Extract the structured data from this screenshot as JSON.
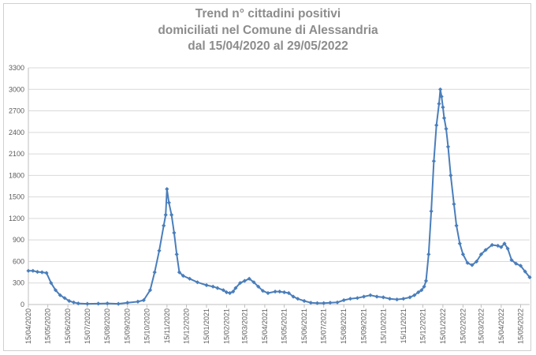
{
  "chart_data": {
    "type": "line",
    "title_lines": [
      "Trend n° cittadini positivi",
      "domiciliati nel Comune di Alessandria",
      "dal 15/04/2020 al 29/05/2022"
    ],
    "xlabel": "",
    "ylabel": "",
    "ylim": [
      0,
      3300
    ],
    "yticks": [
      0,
      300,
      600,
      900,
      1200,
      1500,
      1800,
      2100,
      2400,
      2700,
      3000,
      3300
    ],
    "x_tick_labels": [
      "15/04/2020",
      "15/05/2020",
      "15/06/2020",
      "15/07/2020",
      "15/08/2020",
      "15/09/2020",
      "15/10/2020",
      "15/11/2020",
      "15/12/2020",
      "15/01/2021",
      "15/02/2021",
      "15/03/2021",
      "15/04/2021",
      "15/05/2021",
      "15/06/2021",
      "15/07/2021",
      "15/08/2021",
      "15/09/2021",
      "15/10/2021",
      "15/11/2021",
      "15/12/2021",
      "15/01/2022",
      "15/02/2022",
      "15/03/2022",
      "15/04/2022",
      "15/05/2022"
    ],
    "grid": true,
    "legend": "none",
    "marker": "diamond",
    "color": "#4a7ebb",
    "x_start": "15/04/2020",
    "x_end": "29/05/2022",
    "series": [
      {
        "x": [
          "15/04/2020",
          "22/04/2020",
          "29/04/2020",
          "06/05/2020",
          "13/05/2020",
          "20/05/2020",
          "27/05/2020",
          "03/06/2020",
          "10/06/2020",
          "17/06/2020",
          "24/06/2020",
          "01/07/2020",
          "15/07/2020",
          "01/08/2020",
          "15/08/2020",
          "01/09/2020",
          "15/09/2020",
          "01/10/2020",
          "10/10/2020",
          "20/10/2020",
          "27/10/2020",
          "03/11/2020",
          "10/11/2020",
          "13/11/2020",
          "15/11/2020",
          "18/11/2020",
          "22/11/2020",
          "26/11/2020",
          "30/11/2020",
          "04/12/2020",
          "10/12/2020",
          "20/12/2020",
          "01/01/2021",
          "15/01/2021",
          "25/01/2021",
          "01/02/2021",
          "10/02/2021",
          "15/02/2021",
          "20/02/2021",
          "25/02/2021",
          "01/03/2021",
          "08/03/2021",
          "15/03/2021",
          "22/03/2021",
          "29/03/2021",
          "05/04/2021",
          "12/04/2021",
          "20/04/2021",
          "01/05/2021",
          "08/05/2021",
          "15/05/2021",
          "22/05/2021",
          "29/05/2021",
          "05/06/2021",
          "15/06/2021",
          "25/06/2021",
          "05/07/2021",
          "15/07/2021",
          "25/07/2021",
          "05/08/2021",
          "15/08/2021",
          "25/08/2021",
          "05/09/2021",
          "15/09/2021",
          "25/09/2021",
          "05/10/2021",
          "15/10/2021",
          "25/10/2021",
          "05/11/2021",
          "15/11/2021",
          "25/11/2021",
          "02/12/2021",
          "08/12/2021",
          "13/12/2021",
          "17/12/2021",
          "20/12/2021",
          "24/12/2021",
          "28/12/2021",
          "01/01/2022",
          "05/01/2022",
          "09/01/2022",
          "11/01/2022",
          "13/01/2022",
          "15/01/2022",
          "17/01/2022",
          "20/01/2022",
          "23/01/2022",
          "27/01/2022",
          "01/02/2022",
          "05/02/2022",
          "10/02/2022",
          "15/02/2022",
          "22/02/2022",
          "01/03/2022",
          "08/03/2022",
          "15/03/2022",
          "22/03/2022",
          "01/04/2022",
          "10/04/2022",
          "15/04/2022",
          "20/04/2022",
          "25/04/2022",
          "01/05/2022",
          "08/05/2022",
          "15/05/2022",
          "22/05/2022",
          "29/05/2022"
        ],
        "y": [
          470,
          470,
          455,
          450,
          440,
          300,
          200,
          130,
          90,
          50,
          30,
          15,
          10,
          12,
          15,
          10,
          25,
          40,
          60,
          200,
          450,
          750,
          1100,
          1250,
          1610,
          1420,
          1250,
          1000,
          700,
          450,
          400,
          360,
          310,
          270,
          250,
          230,
          200,
          170,
          160,
          180,
          230,
          300,
          330,
          360,
          310,
          250,
          190,
          160,
          180,
          180,
          170,
          160,
          110,
          80,
          50,
          25,
          20,
          20,
          25,
          30,
          60,
          80,
          90,
          110,
          130,
          110,
          100,
          80,
          70,
          80,
          100,
          130,
          170,
          200,
          250,
          330,
          700,
          1300,
          2000,
          2500,
          2800,
          3000,
          2900,
          2750,
          2600,
          2450,
          2200,
          1800,
          1400,
          1100,
          850,
          700,
          580,
          550,
          600,
          700,
          760,
          830,
          820,
          800,
          850,
          780,
          620,
          570,
          540,
          460,
          380
        ]
      }
    ]
  }
}
